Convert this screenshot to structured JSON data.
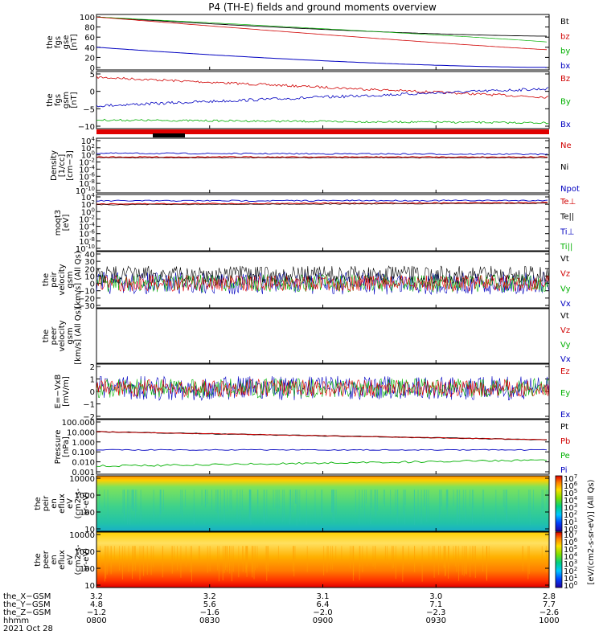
{
  "chart_data": {
    "type": "line",
    "title": "P4 (TH-E) fields and ground moments overview",
    "colorbar_label": "[eV/(cm2-s-sr-eV)] (All Qs)",
    "colorbar_ticks": [
      "10^7",
      "10^6",
      "10^5",
      "10^4",
      "10^3",
      "10^2",
      "10^1",
      "10^0"
    ],
    "panels": [
      {
        "id": "fgs_gse",
        "ylabel": [
          "the",
          "fgs",
          "gse",
          "[nT]"
        ],
        "yticks": [
          "100",
          "80",
          "60",
          "40",
          "20",
          "0"
        ],
        "legend": [
          [
            "Bt",
            "#000000"
          ],
          [
            "bz",
            "#d00000"
          ],
          [
            "by",
            "#00b000"
          ],
          [
            "bx",
            "#0000c0"
          ]
        ]
      },
      {
        "id": "fgs_gsm",
        "ylabel": [
          "the",
          "fgs",
          "gsm",
          "[nT]"
        ],
        "yticks": [
          "5",
          "0",
          "−5",
          "−10"
        ],
        "legend": [
          [
            "Bz",
            "#d00000"
          ],
          [
            "By",
            "#00b000"
          ],
          [
            "Bx",
            "#0000c0"
          ]
        ]
      },
      {
        "id": "density",
        "ylabel": [
          "Density",
          "[1/cc]",
          "[cm−3]"
        ],
        "yticks": [
          "10^4",
          "10^2",
          "10^0",
          "10^-2",
          "10^-4",
          "10^-6",
          "10^-8",
          "10^-10"
        ],
        "legend": [
          [
            "Ne",
            "#d00000"
          ],
          [
            "Ni",
            "#000000"
          ],
          [
            "Npot",
            "#0000c0"
          ]
        ]
      },
      {
        "id": "moqt3",
        "ylabel": [
          "moqt3",
          "[eV]"
        ],
        "yticks": [
          "10^4",
          "10^2",
          "10^0",
          "10^-2",
          "10^-4",
          "10^-6",
          "10^-8",
          "10^-10"
        ],
        "legend": [
          [
            "Te⊥",
            "#d00000"
          ],
          [
            "Te||",
            "#000000"
          ],
          [
            "Ti⊥",
            "#0000c0"
          ],
          [
            "Ti||",
            "#00b000"
          ]
        ]
      },
      {
        "id": "peir_velocity",
        "ylabel": [
          "the",
          "peir",
          "velocity",
          "gsm",
          "[km/s] (All Qs)"
        ],
        "yticks": [
          "40",
          "30",
          "20",
          "10",
          "0",
          "−10",
          "−20",
          "−30"
        ],
        "legend": [
          [
            "Vt",
            "#000000"
          ],
          [
            "Vz",
            "#d00000"
          ],
          [
            "Vy",
            "#00b000"
          ],
          [
            "Vx",
            "#0000c0"
          ]
        ]
      },
      {
        "id": "peer_velocity",
        "ylabel": [
          "the",
          "peer",
          "velocity",
          "gsm",
          "[km/s] (All Qs)"
        ],
        "yticks": [],
        "legend": [
          [
            "Vt",
            "#000000"
          ],
          [
            "Vz",
            "#d00000"
          ],
          [
            "Vy",
            "#00b000"
          ],
          [
            "Vx",
            "#0000c0"
          ]
        ]
      },
      {
        "id": "efield",
        "ylabel": [
          "E=−VxB",
          "[mV/m]"
        ],
        "yticks": [
          "2",
          "1",
          "0",
          "−1",
          "−2"
        ],
        "legend": [
          [
            "Ez",
            "#d00000"
          ],
          [
            "Ey",
            "#00b000"
          ],
          [
            "Ex",
            "#0000c0"
          ]
        ]
      },
      {
        "id": "pressure",
        "ylabel": [
          "Pressure",
          "[nPa]"
        ],
        "yticks": [
          "100.000",
          "10.000",
          "1.000",
          "0.100",
          "0.010",
          "0.001"
        ],
        "legend": [
          [
            "Pt",
            "#000000"
          ],
          [
            "Pb",
            "#d00000"
          ],
          [
            "Pe",
            "#00b000"
          ],
          [
            "Pi",
            "#0000c0"
          ]
        ]
      },
      {
        "id": "peir_spec",
        "ylabel": [
          "the",
          "peir",
          "en",
          "eflux",
          "eV",
          "(cm2-s-",
          "sr-eV)"
        ],
        "yticks": [
          "10000",
          "1000",
          "100",
          "10"
        ],
        "legend": []
      },
      {
        "id": "peer_spec",
        "ylabel": [
          "the",
          "peer",
          "en",
          "eflux",
          "eV",
          "(cm2-s-",
          "sr-eV)"
        ],
        "yticks": [
          "10000",
          "1000",
          "100",
          "10"
        ],
        "legend": []
      }
    ],
    "x_axis": {
      "ticks": [
        "0800",
        "0830",
        "0900",
        "0930",
        "1000"
      ],
      "rows": [
        {
          "label": "the_X−GSM",
          "values": [
            "3.2",
            "3.2",
            "3.1",
            "3.0",
            "2.8"
          ]
        },
        {
          "label": "the_Y−GSM",
          "values": [
            "4.8",
            "5.6",
            "6.4",
            "7.1",
            "7.7"
          ]
        },
        {
          "label": "the_Z−GSM",
          "values": [
            "−1.2",
            "−1.6",
            "−2.0",
            "−2.3",
            "−2.6"
          ]
        },
        {
          "label": "hhmm",
          "values": [
            "0800",
            "0830",
            "0900",
            "0930",
            "1000"
          ]
        }
      ],
      "date": "2021 Oct 28"
    },
    "series_approx": {
      "fgs_gse": {
        "Bt": [
          100,
          62
        ],
        "bz": [
          100,
          35
        ],
        "by": [
          100,
          50
        ],
        "bx": [
          40,
          0
        ]
      },
      "fgs_gsm": {
        "Bz": [
          5,
          -2
        ],
        "By": [
          -5,
          1
        ],
        "Bx": [
          -10,
          -11
        ]
      },
      "density_log10": {
        "Npot": [
          0.6,
          0.3
        ],
        "Ne": [
          -0.5,
          -0.5
        ]
      },
      "moqt3_log10": {
        "Ti": [
          3.2,
          3.3
        ],
        "Te": [
          2.3,
          2.7
        ]
      },
      "pressure_log10": {
        "Pt": [
          1.0,
          0.2
        ],
        "Pb": [
          1.0,
          0.2
        ],
        "Pi": [
          -0.8,
          -0.8
        ],
        "Pe": [
          -2.4,
          -1.8
        ]
      }
    }
  }
}
